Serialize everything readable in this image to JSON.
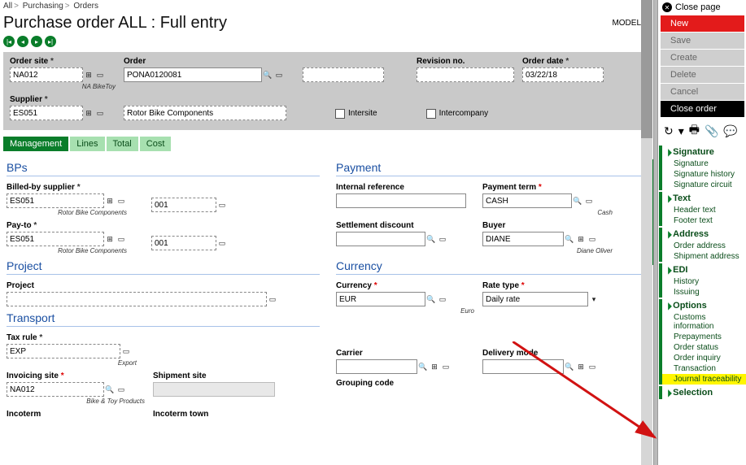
{
  "breadcrumb": [
    "All",
    "Purchasing",
    "Orders"
  ],
  "pageTitle": "Purchase order ALL : Full entry",
  "modelLabel": "MODEL",
  "header": {
    "orderSite": {
      "label": "Order site",
      "value": "NA012",
      "helper": "NA BikeToy"
    },
    "order": {
      "label": "Order",
      "value": "PONA0120081"
    },
    "revision": {
      "label": "Revision no."
    },
    "orderDate": {
      "label": "Order date",
      "value": "03/22/18"
    },
    "supplier": {
      "label": "Supplier",
      "value": "ES051",
      "helper": "Rotor Bike Components"
    },
    "supplierName": "Rotor Bike Components",
    "intersite": "Intersite",
    "intercompany": "Intercompany"
  },
  "tabs": [
    "Management",
    "Lines",
    "Total",
    "Cost"
  ],
  "sections": {
    "bps": "BPs",
    "payment": "Payment",
    "project": "Project",
    "currency": "Currency",
    "transport": "Transport"
  },
  "bps": {
    "billedBy": {
      "label": "Billed-by supplier",
      "value": "ES051",
      "code": "001",
      "helper": "Rotor Bike Components"
    },
    "payTo": {
      "label": "Pay-to",
      "value": "ES051",
      "code": "001",
      "helper": "Rotor Bike Components"
    }
  },
  "payment": {
    "intRef": {
      "label": "Internal reference"
    },
    "term": {
      "label": "Payment term",
      "value": "CASH",
      "helper": "Cash"
    },
    "settlement": {
      "label": "Settlement discount"
    },
    "buyer": {
      "label": "Buyer",
      "value": "DIANE",
      "helper": "Diane Oliver"
    }
  },
  "project": {
    "label": "Project"
  },
  "currency": {
    "cur": {
      "label": "Currency",
      "value": "EUR",
      "helper": "Euro"
    },
    "rate": {
      "label": "Rate type",
      "value": "Daily rate"
    }
  },
  "transport": {
    "taxRule": {
      "label": "Tax rule",
      "value": "EXP",
      "helper": "Export"
    },
    "invSite": {
      "label": "Invoicing site",
      "value": "NA012",
      "helper": "Bike & Toy Products"
    },
    "shipSite": {
      "label": "Shipment site"
    },
    "carrier": {
      "label": "Carrier"
    },
    "delivery": {
      "label": "Delivery mode"
    },
    "incoterm": {
      "label": "Incoterm"
    },
    "incotermTown": {
      "label": "Incoterm town"
    },
    "grouping": {
      "label": "Grouping code"
    }
  },
  "sidebar": {
    "close": "Close page",
    "buttons": {
      "new": "New",
      "save": "Save",
      "create": "Create",
      "delete": "Delete",
      "cancel": "Cancel",
      "closeorder": "Close order"
    },
    "groups": [
      {
        "title": "Signature",
        "links": [
          "Signature",
          "Signature history",
          "Signature circuit"
        ]
      },
      {
        "title": "Text",
        "links": [
          "Header text",
          "Footer text"
        ]
      },
      {
        "title": "Address",
        "links": [
          "Order address",
          "Shipment address"
        ]
      },
      {
        "title": "EDI",
        "links": [
          "History",
          "Issuing"
        ]
      },
      {
        "title": "Options",
        "links": [
          "Customs information",
          "Prepayments",
          "Order status",
          "Order inquiry",
          "Transaction",
          "Journal traceability"
        ]
      },
      {
        "title": "Selection",
        "links": []
      }
    ]
  },
  "colors": {
    "green": "#0a7d2a",
    "red": "#e31b1b",
    "highlight": "#fff600",
    "arrow": "#d11212"
  }
}
